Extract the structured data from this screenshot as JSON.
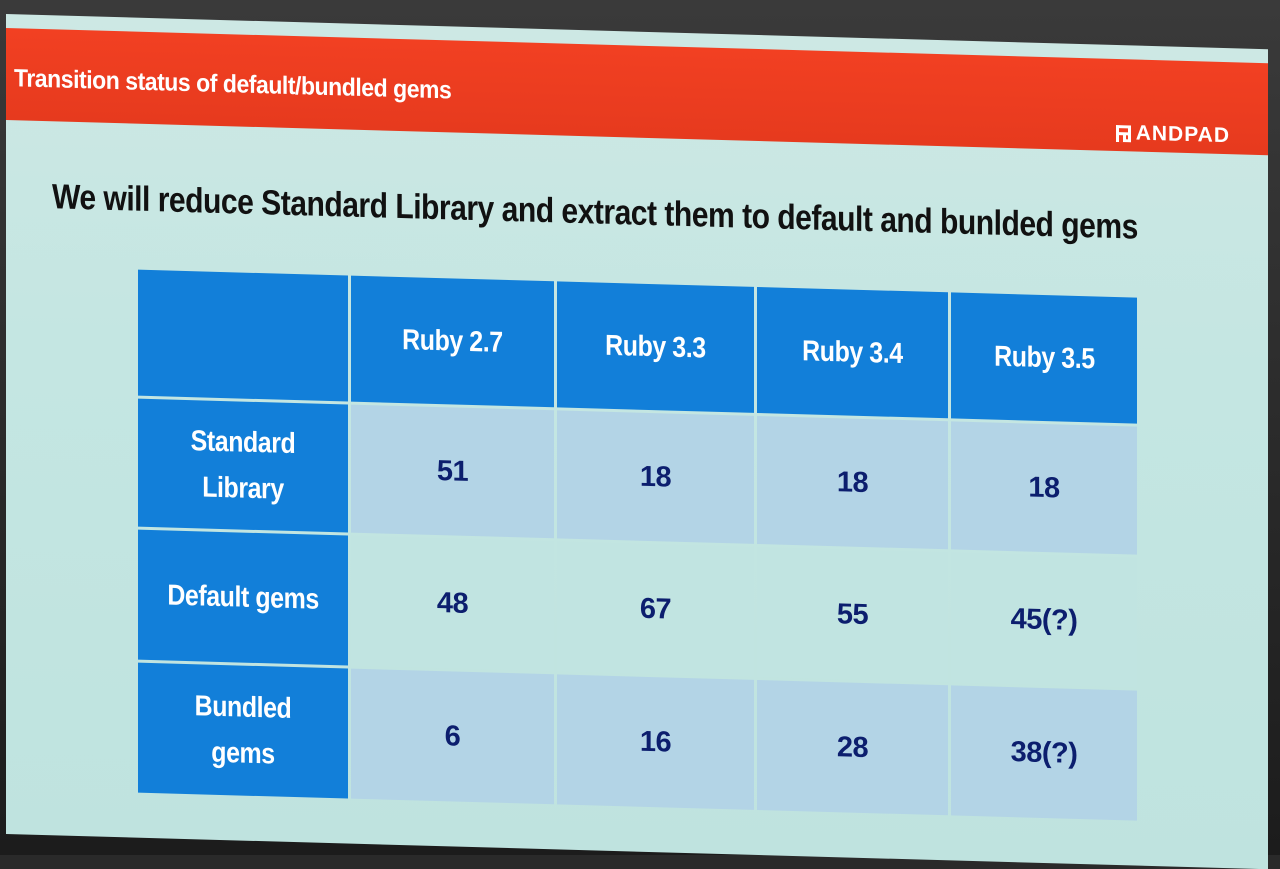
{
  "header": {
    "title": "Transition status of default/bundled gems",
    "brand": "ANDPAD",
    "brand_icon": "andpad-logo-icon",
    "bar_color": "#f24022"
  },
  "headline": "We will reduce Standard Library and extract them to default and bunlded gems",
  "table": {
    "columns": [
      "Ruby 2.7",
      "Ruby 3.3",
      "Ruby 3.4",
      "Ruby 3.5"
    ],
    "rows": [
      {
        "label": "Standard Library",
        "values": [
          "51",
          "18",
          "18",
          "18"
        ]
      },
      {
        "label": "Default gems",
        "values": [
          "48",
          "67",
          "55",
          "45(?)"
        ]
      },
      {
        "label": "Bundled gems",
        "values": [
          "6",
          "16",
          "28",
          "38(?)"
        ]
      }
    ],
    "header_color": "#127fd9"
  }
}
